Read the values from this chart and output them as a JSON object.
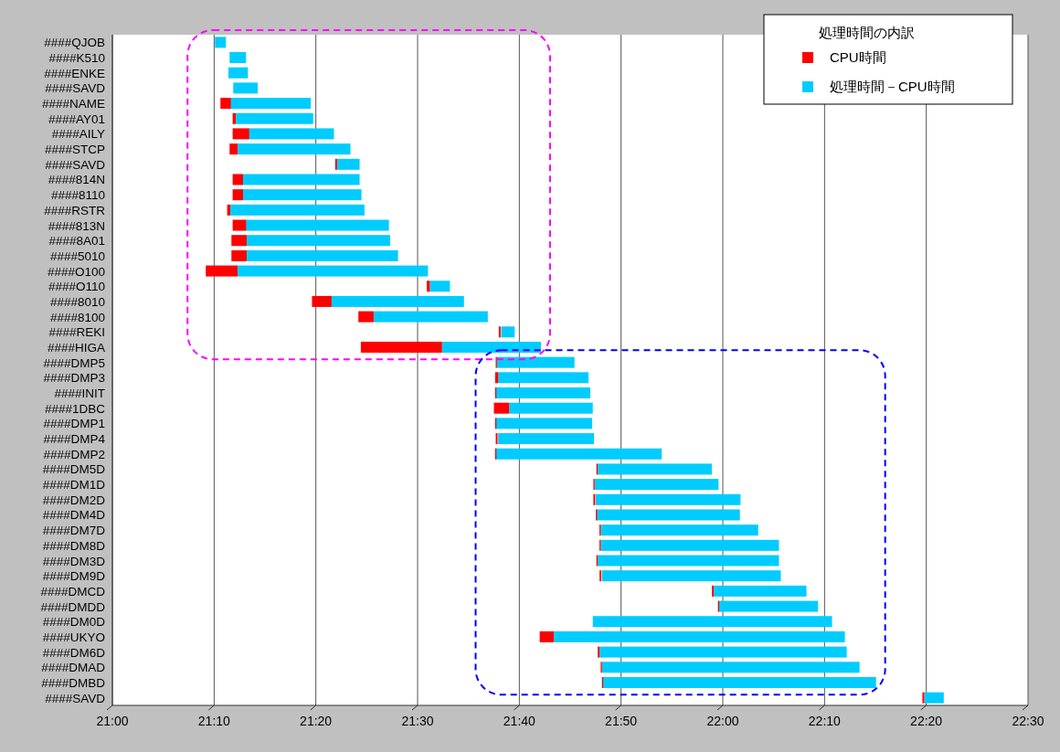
{
  "chart_data": {
    "type": "bar",
    "orientation": "horizontal",
    "legend_title": "処理時間の内訳",
    "legend": "top right",
    "grid": "x",
    "categories": [
      "####QJOB",
      "####K510",
      "####ENKE",
      "####SAVD",
      "####NAME",
      "####AY01",
      "####AILY",
      "####STCP",
      "####SAVD",
      "####814N",
      "####8110",
      "####RSTR",
      "####813N",
      "####8A01",
      "####5010",
      "####O100",
      "####O110",
      "####8010",
      "####8100",
      "####REKI",
      "####HIGA",
      "####DMP5",
      "####DMP3",
      "####INIT",
      "####1DBC",
      "####DMP1",
      "####DMP4",
      "####DMP2",
      "####DM5D",
      "####DM1D",
      "####DM2D",
      "####DM4D",
      "####DM7D",
      "####DM8D",
      "####DM3D",
      "####DM9D",
      "####DMCD",
      "####DMDD",
      "####DM0D",
      "####UKYO",
      "####DM6D",
      "####DMAD",
      "####DMBD",
      "####SAVD"
    ],
    "series": [
      {
        "name": "CPU時間",
        "color": "#ff0000",
        "base": [
          null,
          null,
          null,
          null,
          21.177,
          21.197,
          21.197,
          21.192,
          21.365,
          21.197,
          21.197,
          21.188,
          21.197,
          21.195,
          21.195,
          21.153,
          21.515,
          21.327,
          21.403,
          21.633,
          21.407,
          21.628,
          21.627,
          21.627,
          21.625,
          21.627,
          21.628,
          21.627,
          21.793,
          21.788,
          21.788,
          21.792,
          21.798,
          21.798,
          21.793,
          21.798,
          21.982,
          21.992,
          null,
          21.7,
          21.795,
          21.8,
          21.802,
          22.327
        ],
        "values": [
          null,
          null,
          null,
          null,
          0.017,
          0.005,
          0.027,
          0.013,
          0.003,
          0.017,
          0.017,
          0.005,
          0.022,
          0.025,
          0.025,
          0.052,
          0.005,
          0.032,
          0.025,
          0.003,
          0.133,
          0.002,
          0.005,
          0.002,
          0.025,
          0.002,
          0.003,
          0.002,
          0.002,
          0.002,
          0.003,
          0.002,
          0.002,
          0.002,
          0.002,
          0.003,
          0.003,
          0.002,
          null,
          0.023,
          0.003,
          0.002,
          0.002,
          0.003
        ]
      },
      {
        "name": "処理時間－CPU時間",
        "color": "#00ccff",
        "base": [
          21.168,
          21.192,
          21.19,
          21.198,
          21.193,
          21.202,
          21.223,
          21.205,
          21.368,
          21.213,
          21.213,
          21.193,
          21.218,
          21.22,
          21.22,
          21.205,
          21.52,
          21.358,
          21.428,
          21.637,
          21.54,
          21.63,
          21.632,
          21.628,
          21.65,
          21.628,
          21.632,
          21.628,
          21.795,
          21.79,
          21.792,
          21.793,
          21.8,
          21.8,
          21.795,
          21.802,
          21.985,
          21.993,
          21.787,
          21.723,
          21.798,
          21.802,
          21.803,
          22.33
        ],
        "values": [
          0.018,
          0.027,
          0.032,
          0.04,
          0.132,
          0.127,
          0.14,
          0.185,
          0.037,
          0.192,
          0.195,
          0.22,
          0.235,
          0.235,
          0.248,
          0.312,
          0.033,
          0.218,
          0.187,
          0.022,
          0.162,
          0.127,
          0.148,
          0.155,
          0.137,
          0.158,
          0.157,
          0.272,
          0.187,
          0.203,
          0.237,
          0.235,
          0.258,
          0.292,
          0.297,
          0.293,
          0.152,
          0.163,
          0.392,
          0.477,
          0.405,
          0.422,
          0.448,
          0.032
        ]
      }
    ],
    "xlim": [
      21,
      22.5
    ],
    "xticks": [
      {
        "value": 21,
        "label": "21:00"
      },
      {
        "value": 21.1667,
        "label": "21:10"
      },
      {
        "value": 21.3333,
        "label": "21:20"
      },
      {
        "value": 21.5,
        "label": "21:30"
      },
      {
        "value": 21.6667,
        "label": "21:40"
      },
      {
        "value": 21.8333,
        "label": "21:50"
      },
      {
        "value": 22,
        "label": "22:00"
      },
      {
        "value": 22.1667,
        "label": "22:10"
      },
      {
        "value": 22.3333,
        "label": "22:20"
      },
      {
        "value": 22.5,
        "label": "22:30"
      }
    ]
  }
}
